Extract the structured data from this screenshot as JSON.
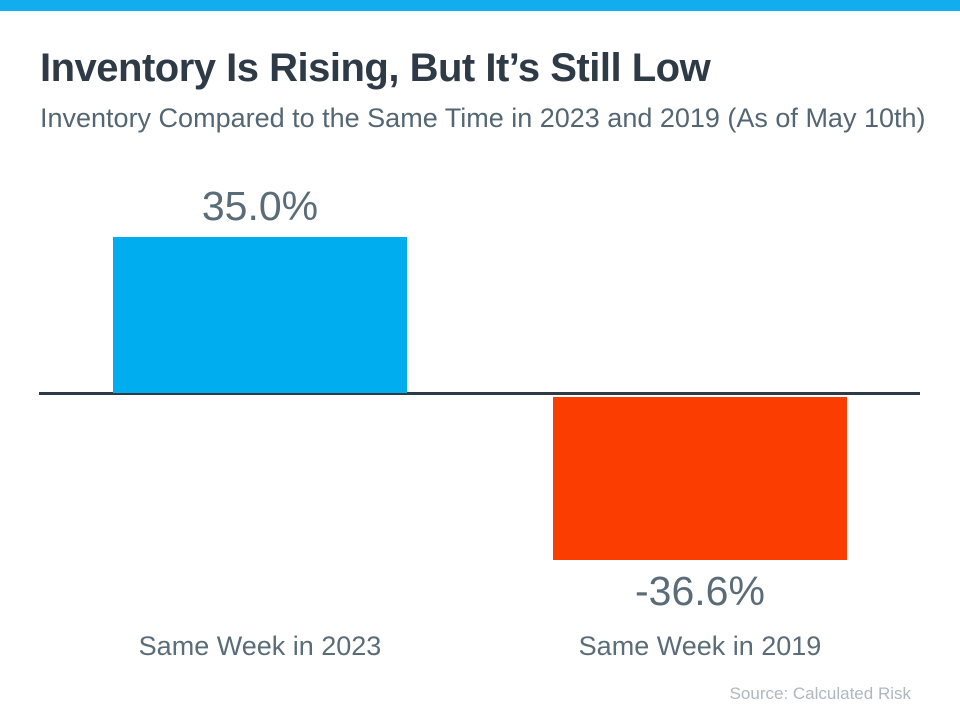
{
  "palette": {
    "stripe": "#12ADEC",
    "axis_line": "#2E3A45",
    "title_text": "#2E3A45",
    "subtitle_text": "#546673",
    "label_text": "#5B6C79",
    "source_text": "#AEB8C0",
    "background": "#FFFFFF"
  },
  "chart_data": {
    "type": "bar",
    "title": "Inventory Is Rising, But It’s Still Low",
    "subtitle": "Inventory Compared to the Same Time in 2023 and 2019 (As of May 10th)",
    "categories": [
      "Same Week in 2023",
      "Same Week in 2019"
    ],
    "values": [
      35.0,
      -36.6
    ],
    "value_labels": [
      "35.0%",
      "-36.6%"
    ],
    "bar_colors": [
      "#00AEEF",
      "#FB3D02"
    ],
    "baseline": 0,
    "ylim": [
      -40,
      40
    ],
    "grid": false,
    "legend": false,
    "source": "Source: Calculated Risk"
  }
}
